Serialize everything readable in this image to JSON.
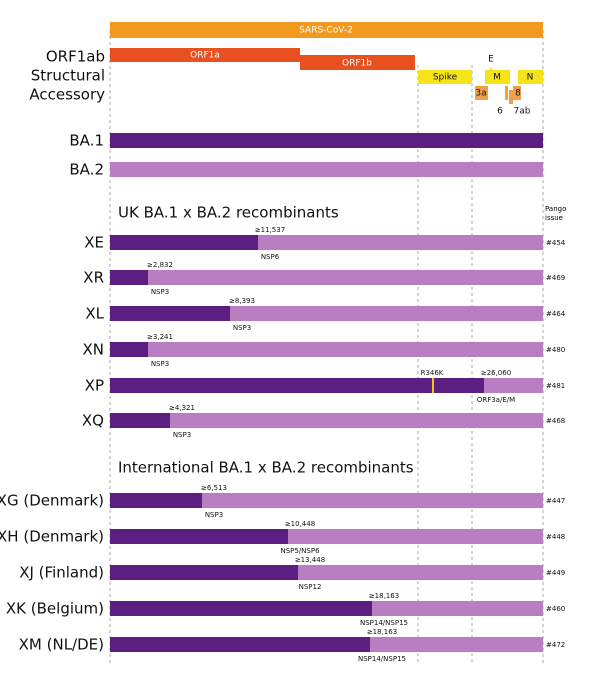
{
  "genome": {
    "title": "SARS-CoV-2",
    "row_labels": [
      "ORF1ab",
      "Structural",
      "Accessory"
    ],
    "genes": {
      "orf1a": "ORF1a",
      "orf1b": "ORF1b",
      "spike": "Spike",
      "e": "E",
      "m": "M",
      "n": "N",
      "orf3a": "3a",
      "orf6": "6",
      "orf7ab": "7ab",
      "orf8": "8"
    }
  },
  "parents": [
    "BA.1",
    "BA.2"
  ],
  "pango_header": "Pango issue",
  "groups": [
    {
      "title": "UK BA.1 x BA.2 recombinants",
      "rows": [
        {
          "name": "XE",
          "breakpoint": "≥11,537",
          "gene": "NSP6",
          "issue": "#454"
        },
        {
          "name": "XR",
          "breakpoint": "≥2,832",
          "gene": "NSP3",
          "issue": "#469"
        },
        {
          "name": "XL",
          "breakpoint": "≥8,393",
          "gene": "NSP3",
          "issue": "#464"
        },
        {
          "name": "XN",
          "breakpoint": "≥3,241",
          "gene": "NSP3",
          "issue": "#480"
        },
        {
          "name": "XP",
          "breakpoint": "≥26,060",
          "gene": "ORF3a/E/M",
          "issue": "#481",
          "mutation": "R346K"
        },
        {
          "name": "XQ",
          "breakpoint": "≥4,321",
          "gene": "NSP3",
          "issue": "#468"
        }
      ]
    },
    {
      "title": "International BA.1 x BA.2 recombinants",
      "rows": [
        {
          "name": "XG (Denmark)",
          "breakpoint": "≥6,513",
          "gene": "NSP3",
          "issue": "#447"
        },
        {
          "name": "XH (Denmark)",
          "breakpoint": "≥10,448",
          "gene": "NSP5/NSP6",
          "issue": "#448"
        },
        {
          "name": "XJ (Finland)",
          "breakpoint": "≥13,448",
          "gene": "NSP12",
          "issue": "#449"
        },
        {
          "name": "XK (Belgium)",
          "breakpoint": "≥18,163",
          "gene": "NSP14/NSP15",
          "issue": "#460"
        },
        {
          "name": "XM (NL/DE)",
          "breakpoint": "≥18,163",
          "gene": "NSP14/NSP15",
          "issue": "#472"
        }
      ]
    }
  ]
}
